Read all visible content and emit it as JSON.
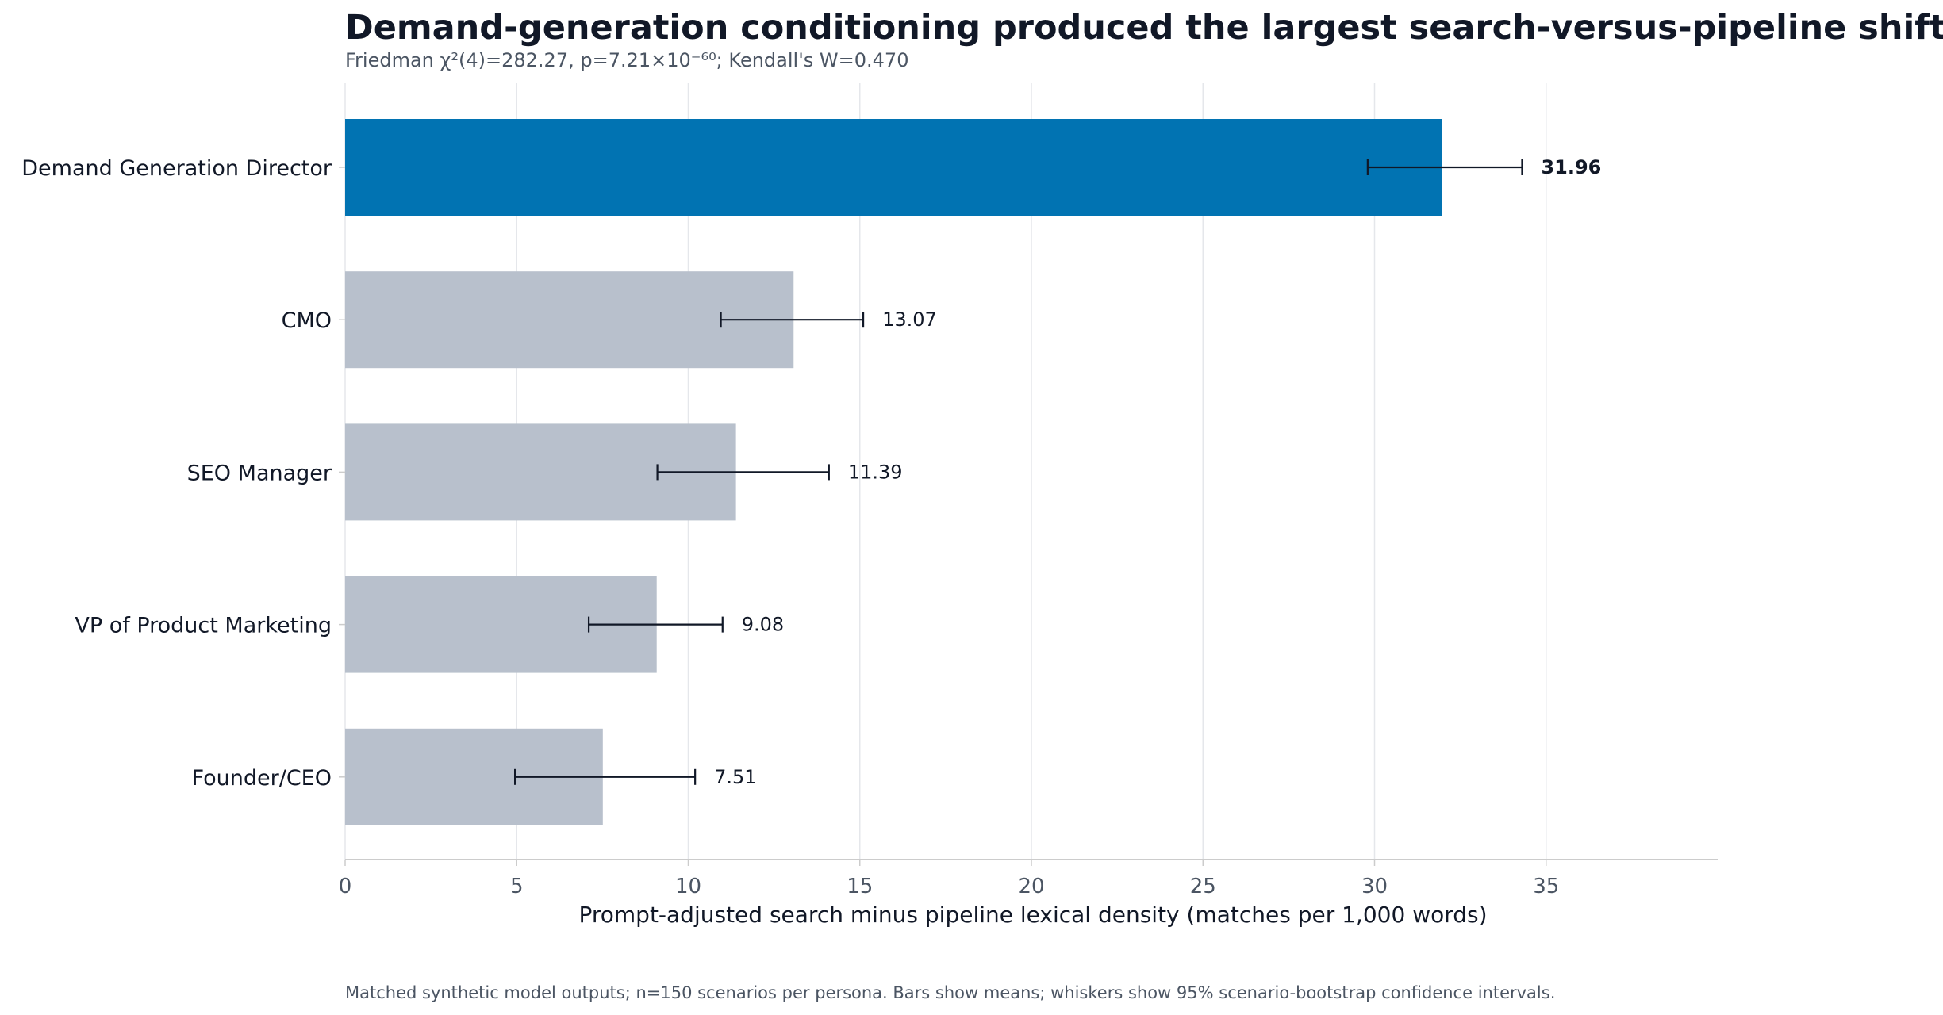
{
  "chart_data": {
    "type": "bar",
    "orientation": "horizontal",
    "title": "Demand-generation conditioning produced the largest search-versus-pipeline shift",
    "subtitle": "Friedman χ²(4)=282.27, p=7.21×10⁻⁶⁰; Kendall's W=0.470",
    "xlabel": "Prompt-adjusted search minus pipeline lexical density (matches per 1,000 words)",
    "ylabel": "",
    "footnote": "Matched synthetic model outputs; n=150 scenarios per persona. Bars show means; whiskers show 95% scenario-bootstrap confidence intervals.",
    "xlim": [
      0,
      40
    ],
    "xticks": [
      0,
      5,
      10,
      15,
      20,
      25,
      30,
      35
    ],
    "grid": "vertical",
    "categories": [
      "Demand Generation Director",
      "CMO",
      "SEO Manager",
      "VP of Product Marketing",
      "Founder/CEO"
    ],
    "values": [
      31.96,
      13.07,
      11.39,
      9.08,
      7.51
    ],
    "value_labels": [
      "31.96",
      "13.07",
      "11.39",
      "9.08",
      "7.51"
    ],
    "ci_low": [
      29.8,
      10.95,
      9.1,
      7.1,
      4.95
    ],
    "ci_high": [
      34.3,
      15.1,
      14.1,
      11.0,
      10.2
    ],
    "highlight_index": 0,
    "colors": {
      "highlight": "#0173b2",
      "default": "#b8c0cc",
      "whisker": "#111827",
      "grid": "#e5e7eb",
      "axis": "#cccccc"
    }
  }
}
